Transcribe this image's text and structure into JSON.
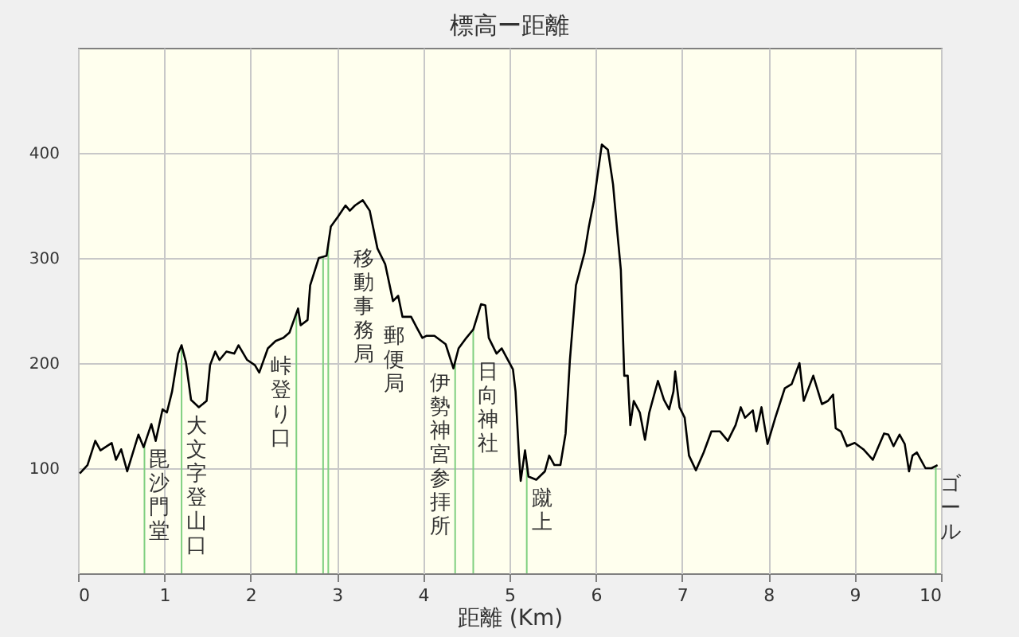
{
  "chart_data": {
    "type": "line",
    "title": "標高ー距離",
    "xlabel": "距離 (Km)",
    "x": [
      0.02,
      0.11,
      0.2,
      0.26,
      0.39,
      0.44,
      0.5,
      0.57,
      0.7,
      0.76,
      0.85,
      0.9,
      0.98,
      1.03,
      1.09,
      1.16,
      1.2,
      1.25,
      1.31,
      1.4,
      1.49,
      1.53,
      1.59,
      1.64,
      1.72,
      1.81,
      1.86,
      1.96,
      2.05,
      2.1,
      2.2,
      2.29,
      2.38,
      2.45,
      2.55,
      2.58,
      2.66,
      2.69,
      2.79,
      2.88,
      2.93,
      3.01,
      3.1,
      3.15,
      3.21,
      3.3,
      3.38,
      3.47,
      3.56,
      3.65,
      3.71,
      3.76,
      3.86,
      3.93,
      3.99,
      4.04,
      4.13,
      4.26,
      4.35,
      4.41,
      4.5,
      4.58,
      4.67,
      4.72,
      4.76,
      4.85,
      4.91,
      5.04,
      5.07,
      5.11,
      5.13,
      5.18,
      5.22,
      5.31,
      5.41,
      5.46,
      5.52,
      5.59,
      5.65,
      5.7,
      5.77,
      5.87,
      5.92,
      5.98,
      6.07,
      6.14,
      6.2,
      6.25,
      6.29,
      6.33,
      6.37,
      6.4,
      6.44,
      6.51,
      6.57,
      6.62,
      6.72,
      6.79,
      6.85,
      6.9,
      6.92,
      6.97,
      7.03,
      7.08,
      7.16,
      7.25,
      7.34,
      7.44,
      7.53,
      7.62,
      7.68,
      7.73,
      7.82,
      7.86,
      7.92,
      7.99,
      8.08,
      8.19,
      8.27,
      8.36,
      8.41,
      8.52,
      8.62,
      8.69,
      8.75,
      8.78,
      8.84,
      8.91,
      9.0,
      9.1,
      9.21,
      9.34,
      9.39,
      9.45,
      9.52,
      9.58,
      9.63,
      9.67,
      9.72,
      9.82,
      9.89,
      9.96
    ],
    "series": [
      {
        "color": "#000000",
        "values": [
          95,
          103,
          126,
          117,
          124,
          108,
          118,
          97,
          132,
          120,
          142,
          126,
          156,
          153,
          173,
          209,
          217,
          201,
          165,
          158,
          164,
          198,
          211,
          203,
          211,
          209,
          217,
          203,
          198,
          191,
          214,
          221,
          224,
          229,
          252,
          236,
          241,
          274,
          300,
          302,
          330,
          339,
          350,
          345,
          350,
          355,
          345,
          309,
          294,
          259,
          264,
          244,
          244,
          233,
          224,
          226,
          226,
          218,
          195,
          214,
          224,
          232,
          256,
          255,
          224,
          209,
          214,
          194,
          173,
          112,
          88,
          117,
          92,
          89,
          97,
          112,
          103,
          103,
          133,
          203,
          274,
          305,
          330,
          355,
          408,
          403,
          370,
          324,
          289,
          188,
          188,
          141,
          164,
          153,
          127,
          153,
          183,
          165,
          156,
          173,
          192,
          158,
          148,
          112,
          98,
          115,
          135,
          135,
          126,
          141,
          158,
          148,
          155,
          135,
          158,
          123,
          148,
          176,
          180,
          200,
          164,
          188,
          161,
          164,
          170,
          138,
          135,
          121,
          124,
          118,
          108,
          133,
          132,
          121,
          132,
          123,
          97,
          112,
          115,
          100,
          100,
          103
        ]
      }
    ],
    "xlim": [
      0,
      10
    ],
    "xticks": [
      0,
      1,
      2,
      3,
      4,
      5,
      6,
      7,
      8,
      9,
      10
    ],
    "ylim": [
      0,
      500
    ],
    "yticks": [
      100,
      200,
      300,
      400
    ],
    "grid": true,
    "marker": "none",
    "line_style": "solid",
    "ref_lines": [
      {
        "axis": "x",
        "value": 0.77,
        "label": "毘沙門堂",
        "color": "#80d080"
      },
      {
        "axis": "x",
        "value": 1.2,
        "label": "大文字登山口",
        "color": "#80d080"
      },
      {
        "axis": "x",
        "value": 2.53,
        "label": "峠登り口",
        "color": "#80d080"
      },
      {
        "axis": "x",
        "value": 2.84,
        "label": "移動事務局",
        "color": "#80d080"
      },
      {
        "axis": "x",
        "value": 2.9,
        "label": "郵便局",
        "color": "#80d080"
      },
      {
        "axis": "x",
        "value": 4.37,
        "label": "伊勢神宮参拝所",
        "color": "#80d080"
      },
      {
        "axis": "x",
        "value": 4.58,
        "label": "日向神社",
        "color": "#80d080"
      },
      {
        "axis": "x",
        "value": 5.2,
        "label": "蹴上",
        "color": "#80d080"
      },
      {
        "axis": "x",
        "value": 9.94,
        "label": "ゴール",
        "color": "#80d080"
      }
    ]
  }
}
